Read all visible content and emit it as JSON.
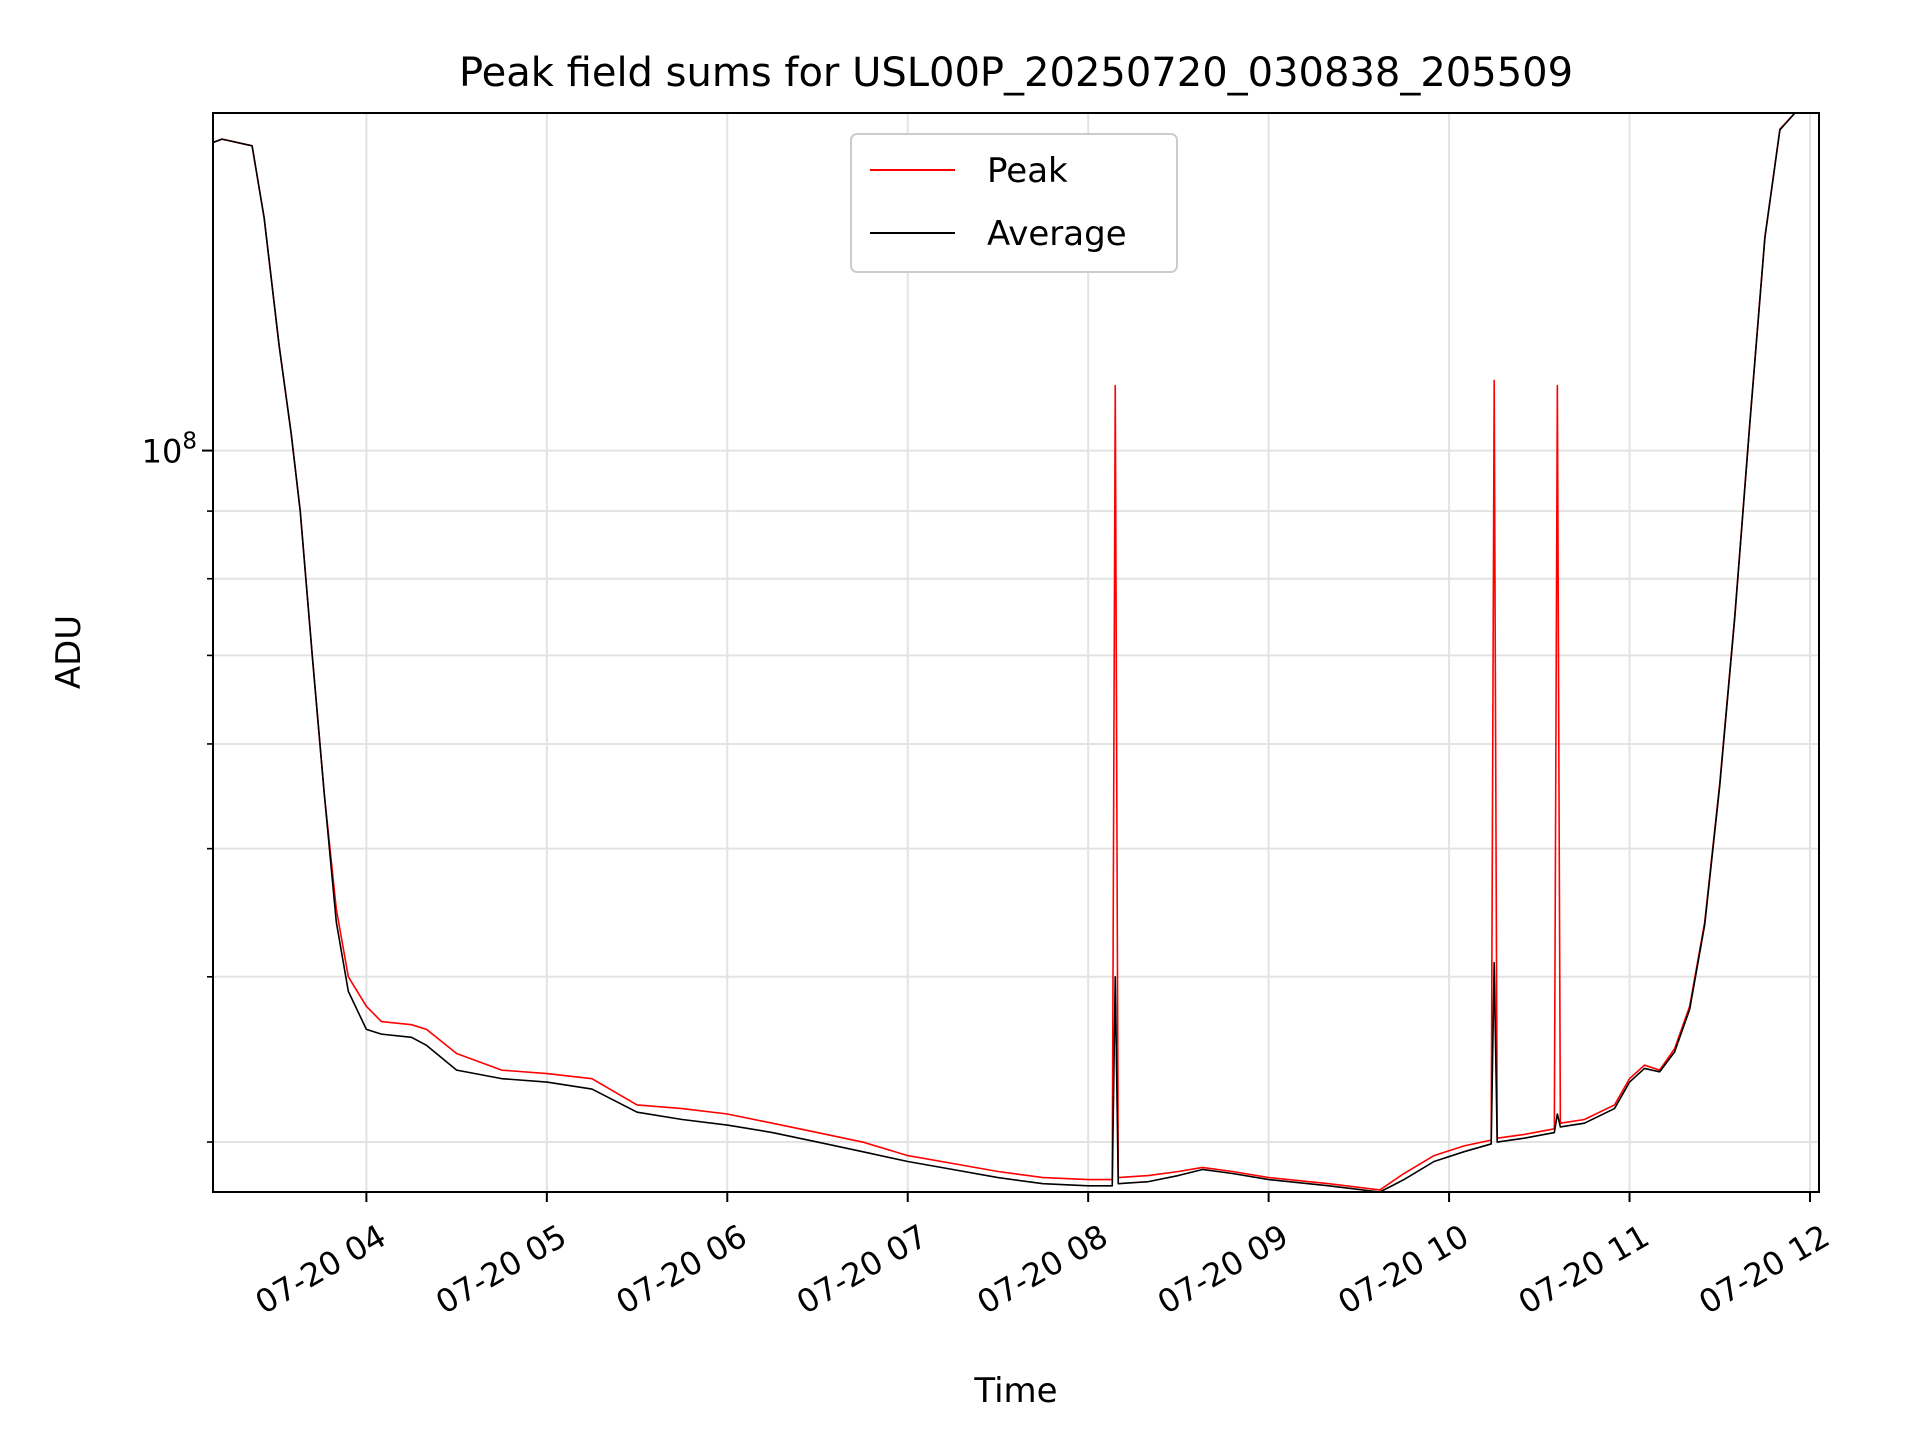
{
  "chart_data": {
    "type": "line",
    "title": "Peak field sums for USL00P_20250720_030838_205509",
    "xlabel": "Time",
    "ylabel": "ADU",
    "yscale": "log",
    "grid": true,
    "legend_position": "top-center",
    "xlim": [
      "2025-07-20T03:09",
      "2025-07-20T12:03"
    ],
    "ylim": [
      27500000,
      180000000
    ],
    "x_tick_labels": [
      "07-20 04",
      "07-20 05",
      "07-20 06",
      "07-20 07",
      "07-20 08",
      "07-20 09",
      "07-20 10",
      "07-20 11",
      "07-20 12"
    ],
    "x_tick_times": [
      "2025-07-20T04:00",
      "2025-07-20T05:00",
      "2025-07-20T06:00",
      "2025-07-20T07:00",
      "2025-07-20T08:00",
      "2025-07-20T09:00",
      "2025-07-20T10:00",
      "2025-07-20T11:00",
      "2025-07-20T12:00"
    ],
    "y_tick_labels": [
      {
        "value": 100000000,
        "base": "10",
        "exp": "8"
      }
    ],
    "y_minor_ticks": [
      30000000,
      40000000,
      50000000,
      60000000,
      70000000,
      80000000,
      90000000
    ],
    "series": [
      {
        "name": "Peak",
        "color": "#ff0000",
        "points": [
          [
            "2025-07-20T03:09",
            171000000
          ],
          [
            "2025-07-20T03:12",
            172000000
          ],
          [
            "2025-07-20T03:22",
            170000000
          ],
          [
            "2025-07-20T03:26",
            150000000
          ],
          [
            "2025-07-20T03:31",
            120000000
          ],
          [
            "2025-07-20T03:35",
            103000000
          ],
          [
            "2025-07-20T03:38",
            90000000
          ],
          [
            "2025-07-20T03:42",
            70000000
          ],
          [
            "2025-07-20T03:46",
            55000000
          ],
          [
            "2025-07-20T03:50",
            45000000
          ],
          [
            "2025-07-20T03:54",
            40000000
          ],
          [
            "2025-07-20T04:00",
            38000000
          ],
          [
            "2025-07-20T04:05",
            37000000
          ],
          [
            "2025-07-20T04:15",
            36800000
          ],
          [
            "2025-07-20T04:20",
            36500000
          ],
          [
            "2025-07-20T04:30",
            35000000
          ],
          [
            "2025-07-20T04:45",
            34000000
          ],
          [
            "2025-07-20T05:00",
            33800000
          ],
          [
            "2025-07-20T05:15",
            33500000
          ],
          [
            "2025-07-20T05:30",
            32000000
          ],
          [
            "2025-07-20T05:45",
            31800000
          ],
          [
            "2025-07-20T06:00",
            31500000
          ],
          [
            "2025-07-20T06:15",
            31000000
          ],
          [
            "2025-07-20T06:30",
            30500000
          ],
          [
            "2025-07-20T06:45",
            30000000
          ],
          [
            "2025-07-20T07:00",
            29300000
          ],
          [
            "2025-07-20T07:15",
            28900000
          ],
          [
            "2025-07-20T07:30",
            28500000
          ],
          [
            "2025-07-20T07:45",
            28200000
          ],
          [
            "2025-07-20T08:00",
            28100000
          ],
          [
            "2025-07-20T08:08",
            28100000
          ],
          [
            "2025-07-20T08:09",
            112000000
          ],
          [
            "2025-07-20T08:10",
            28200000
          ],
          [
            "2025-07-20T08:20",
            28300000
          ],
          [
            "2025-07-20T08:30",
            28500000
          ],
          [
            "2025-07-20T08:38",
            28700000
          ],
          [
            "2025-07-20T08:48",
            28500000
          ],
          [
            "2025-07-20T09:00",
            28200000
          ],
          [
            "2025-07-20T09:20",
            27900000
          ],
          [
            "2025-07-20T09:37",
            27600000
          ],
          [
            "2025-07-20T09:45",
            28400000
          ],
          [
            "2025-07-20T09:55",
            29300000
          ],
          [
            "2025-07-20T10:05",
            29800000
          ],
          [
            "2025-07-20T10:14",
            30100000
          ],
          [
            "2025-07-20T10:15",
            113000000
          ],
          [
            "2025-07-20T10:16",
            30200000
          ],
          [
            "2025-07-20T10:25",
            30400000
          ],
          [
            "2025-07-20T10:35",
            30700000
          ],
          [
            "2025-07-20T10:36",
            112000000
          ],
          [
            "2025-07-20T10:37",
            31000000
          ],
          [
            "2025-07-20T10:45",
            31200000
          ],
          [
            "2025-07-20T10:55",
            32000000
          ],
          [
            "2025-07-20T11:00",
            33500000
          ],
          [
            "2025-07-20T11:05",
            34300000
          ],
          [
            "2025-07-20T11:10",
            34000000
          ],
          [
            "2025-07-20T11:15",
            35300000
          ],
          [
            "2025-07-20T11:20",
            38000000
          ],
          [
            "2025-07-20T11:25",
            44000000
          ],
          [
            "2025-07-20T11:30",
            56000000
          ],
          [
            "2025-07-20T11:35",
            75000000
          ],
          [
            "2025-07-20T11:40",
            105000000
          ],
          [
            "2025-07-20T11:45",
            145000000
          ],
          [
            "2025-07-20T11:50",
            175000000
          ],
          [
            "2025-07-20T11:55",
            180000000
          ]
        ]
      },
      {
        "name": "Average",
        "color": "#000000",
        "points": [
          [
            "2025-07-20T03:09",
            171000000
          ],
          [
            "2025-07-20T03:12",
            172000000
          ],
          [
            "2025-07-20T03:22",
            170000000
          ],
          [
            "2025-07-20T03:26",
            150000000
          ],
          [
            "2025-07-20T03:31",
            120000000
          ],
          [
            "2025-07-20T03:35",
            103000000
          ],
          [
            "2025-07-20T03:38",
            90000000
          ],
          [
            "2025-07-20T03:42",
            70000000
          ],
          [
            "2025-07-20T03:46",
            55000000
          ],
          [
            "2025-07-20T03:50",
            44000000
          ],
          [
            "2025-07-20T03:54",
            39000000
          ],
          [
            "2025-07-20T04:00",
            36500000
          ],
          [
            "2025-07-20T04:05",
            36200000
          ],
          [
            "2025-07-20T04:15",
            36000000
          ],
          [
            "2025-07-20T04:20",
            35500000
          ],
          [
            "2025-07-20T04:30",
            34000000
          ],
          [
            "2025-07-20T04:45",
            33500000
          ],
          [
            "2025-07-20T05:00",
            33300000
          ],
          [
            "2025-07-20T05:15",
            32900000
          ],
          [
            "2025-07-20T05:30",
            31600000
          ],
          [
            "2025-07-20T05:45",
            31200000
          ],
          [
            "2025-07-20T06:00",
            30900000
          ],
          [
            "2025-07-20T06:15",
            30500000
          ],
          [
            "2025-07-20T06:30",
            30000000
          ],
          [
            "2025-07-20T06:45",
            29500000
          ],
          [
            "2025-07-20T07:00",
            29000000
          ],
          [
            "2025-07-20T07:15",
            28600000
          ],
          [
            "2025-07-20T07:30",
            28200000
          ],
          [
            "2025-07-20T07:45",
            27900000
          ],
          [
            "2025-07-20T08:00",
            27800000
          ],
          [
            "2025-07-20T08:08",
            27800000
          ],
          [
            "2025-07-20T08:09",
            40000000
          ],
          [
            "2025-07-20T08:10",
            27900000
          ],
          [
            "2025-07-20T08:20",
            28000000
          ],
          [
            "2025-07-20T08:30",
            28300000
          ],
          [
            "2025-07-20T08:38",
            28600000
          ],
          [
            "2025-07-20T08:48",
            28400000
          ],
          [
            "2025-07-20T09:00",
            28100000
          ],
          [
            "2025-07-20T09:20",
            27800000
          ],
          [
            "2025-07-20T09:37",
            27500000
          ],
          [
            "2025-07-20T09:45",
            28100000
          ],
          [
            "2025-07-20T09:55",
            29000000
          ],
          [
            "2025-07-20T10:05",
            29500000
          ],
          [
            "2025-07-20T10:14",
            29900000
          ],
          [
            "2025-07-20T10:15",
            41000000
          ],
          [
            "2025-07-20T10:16",
            30000000
          ],
          [
            "2025-07-20T10:25",
            30200000
          ],
          [
            "2025-07-20T10:35",
            30500000
          ],
          [
            "2025-07-20T10:36",
            31500000
          ],
          [
            "2025-07-20T10:37",
            30800000
          ],
          [
            "2025-07-20T10:45",
            31000000
          ],
          [
            "2025-07-20T10:55",
            31800000
          ],
          [
            "2025-07-20T11:00",
            33300000
          ],
          [
            "2025-07-20T11:05",
            34100000
          ],
          [
            "2025-07-20T11:10",
            33900000
          ],
          [
            "2025-07-20T11:15",
            35100000
          ],
          [
            "2025-07-20T11:20",
            37800000
          ],
          [
            "2025-07-20T11:25",
            43800000
          ],
          [
            "2025-07-20T11:30",
            55800000
          ],
          [
            "2025-07-20T11:35",
            74800000
          ],
          [
            "2025-07-20T11:40",
            104800000
          ],
          [
            "2025-07-20T11:45",
            144800000
          ],
          [
            "2025-07-20T11:50",
            174800000
          ],
          [
            "2025-07-20T11:55",
            180000000
          ]
        ]
      }
    ]
  }
}
